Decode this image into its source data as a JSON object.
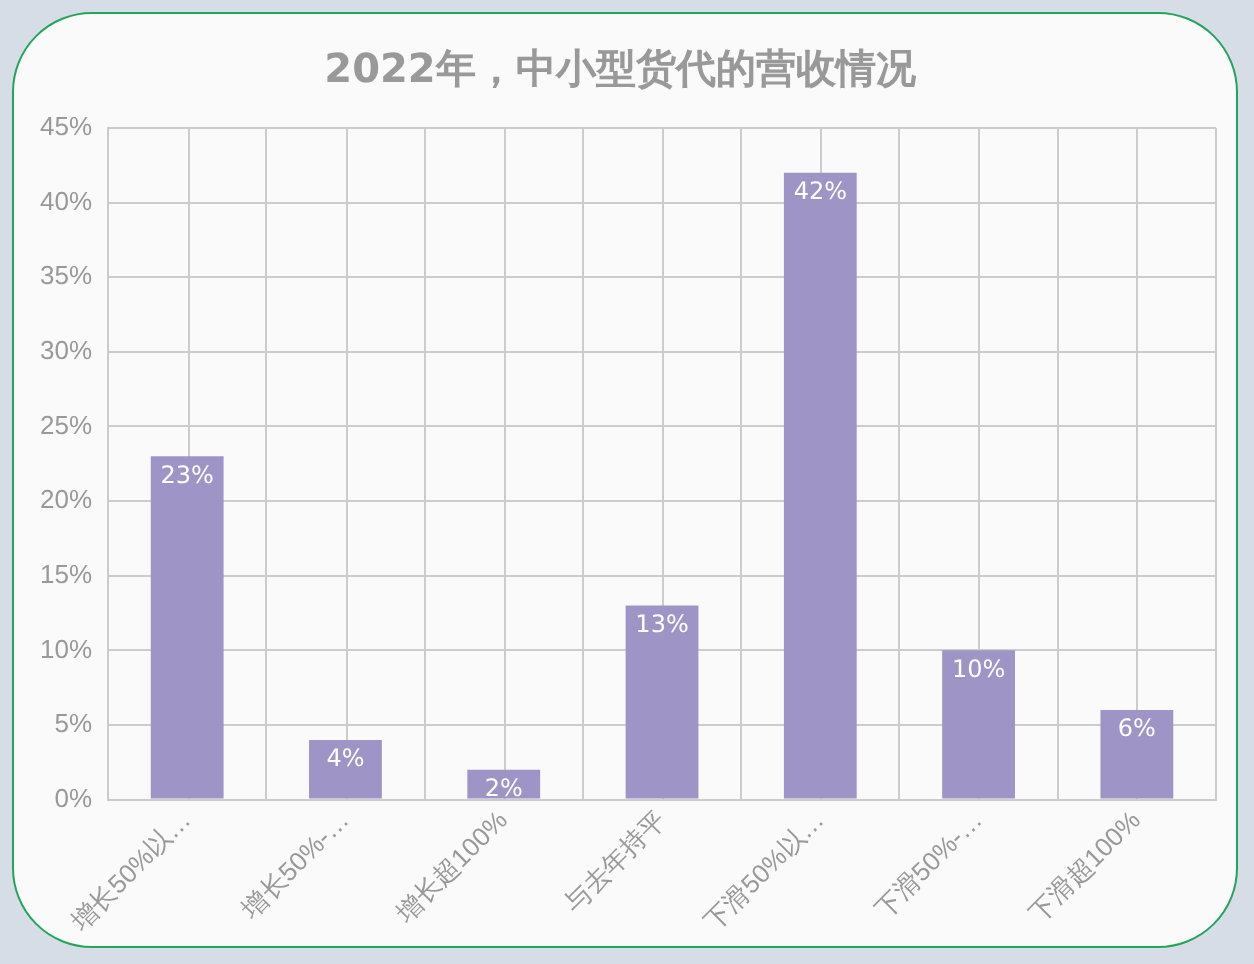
{
  "chart_data": {
    "type": "bar",
    "title": "2022年，中小型货代的营收情况",
    "categories": [
      "增长50%以…",
      "增长50%-…",
      "增长超100%",
      "与去年持平",
      "下滑50%以…",
      "下滑50%-…",
      "下滑超100%"
    ],
    "values": [
      23,
      4,
      2,
      13,
      42,
      10,
      6
    ],
    "value_labels": [
      "23%",
      "4%",
      "2%",
      "13%",
      "42%",
      "10%",
      "6%"
    ],
    "color": "#9f94c6",
    "ylim": [
      0,
      45
    ],
    "yticks": [
      {
        "value": 0,
        "label": "0%"
      },
      {
        "value": 5,
        "label": "5%"
      },
      {
        "value": 10,
        "label": "10%"
      },
      {
        "value": 15,
        "label": "15%"
      },
      {
        "value": 20,
        "label": "20%"
      },
      {
        "value": 25,
        "label": "25%"
      },
      {
        "value": 30,
        "label": "30%"
      },
      {
        "value": 35,
        "label": "35%"
      },
      {
        "value": 40,
        "label": "40%"
      },
      {
        "value": 45,
        "label": "45%"
      }
    ],
    "grid": true
  }
}
